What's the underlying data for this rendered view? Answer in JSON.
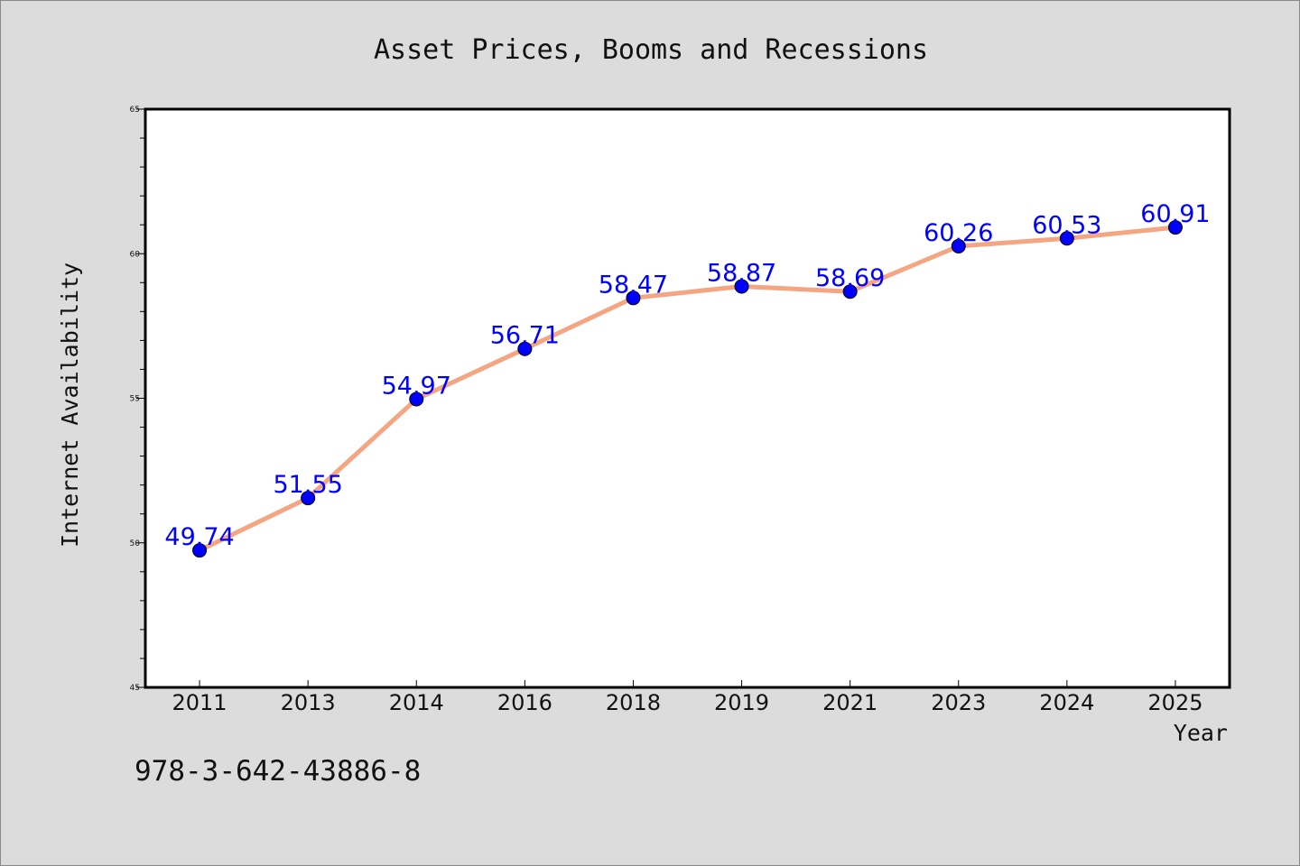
{
  "chart_data": {
    "type": "line",
    "title": "Asset Prices, Booms and Recessions",
    "xlabel": "Year",
    "ylabel": "Internet Availability",
    "categories": [
      "2011",
      "2013",
      "2014",
      "2016",
      "2018",
      "2019",
      "2021",
      "2023",
      "2024",
      "2025"
    ],
    "series": [
      {
        "values": [
          49.74,
          51.55,
          54.97,
          56.71,
          58.47,
          58.87,
          58.69,
          60.26,
          60.53,
          60.91
        ],
        "data_labels": [
          "49.74",
          "51.55",
          "54.97",
          "56.71",
          "58.47",
          "58.87",
          "58.69",
          "60.26",
          "60.53",
          "60.91"
        ],
        "line_color": "#f4a582",
        "marker_color": "#0000ff",
        "label_color": "#0000ff"
      }
    ],
    "ylim": [
      45,
      65
    ],
    "yticks": [
      45,
      50,
      55,
      60,
      65
    ],
    "ytick_labels": [
      "45",
      "50",
      "55",
      "60",
      "65"
    ],
    "grid": false,
    "legend": "none",
    "colors": {
      "background": "#dcdcdc",
      "plot_background": "#ffffff",
      "axis": "#000000"
    }
  },
  "annotation": {
    "isbn": "978-3-642-43886-8"
  }
}
